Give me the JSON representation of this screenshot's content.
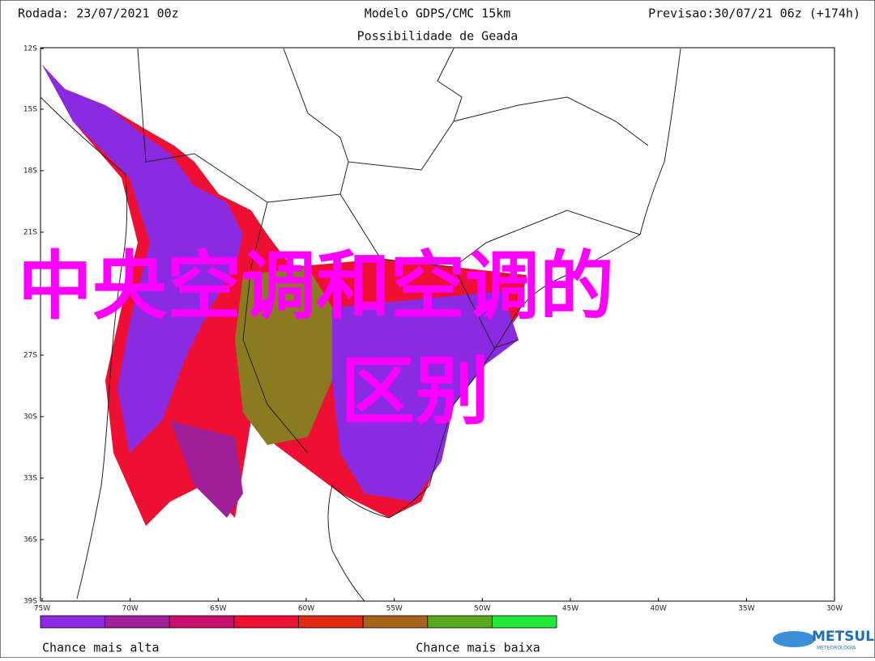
{
  "header": {
    "left": "Rodada: 23/07/2021 00z",
    "center": "Modelo GDPS/CMC 15km",
    "right": "Previsao:30/07/21 06z (+174h)",
    "subtitle": "Possibilidade de Geada"
  },
  "map": {
    "lat_labels": [
      "12S",
      "15S",
      "18S",
      "21S",
      "27S",
      "30S",
      "33S",
      "36S",
      "39S"
    ],
    "lon_labels": [
      "75W",
      "70W",
      "65W",
      "60W",
      "55W",
      "50W",
      "45W",
      "40W",
      "35W",
      "30W"
    ]
  },
  "legend": {
    "colors": [
      "#8a2be2",
      "#a0209a",
      "#c8106a",
      "#ee1032",
      "#e02a14",
      "#a8621c",
      "#5aa81c",
      "#22e83c"
    ],
    "high": "Chance mais alta",
    "low": "Chance mais baixa"
  },
  "overlay": {
    "line1": "中央空调和空调的",
    "line2": "区别"
  },
  "logo": {
    "name": "METSUL",
    "tagline": "METEOROLOGIA"
  }
}
